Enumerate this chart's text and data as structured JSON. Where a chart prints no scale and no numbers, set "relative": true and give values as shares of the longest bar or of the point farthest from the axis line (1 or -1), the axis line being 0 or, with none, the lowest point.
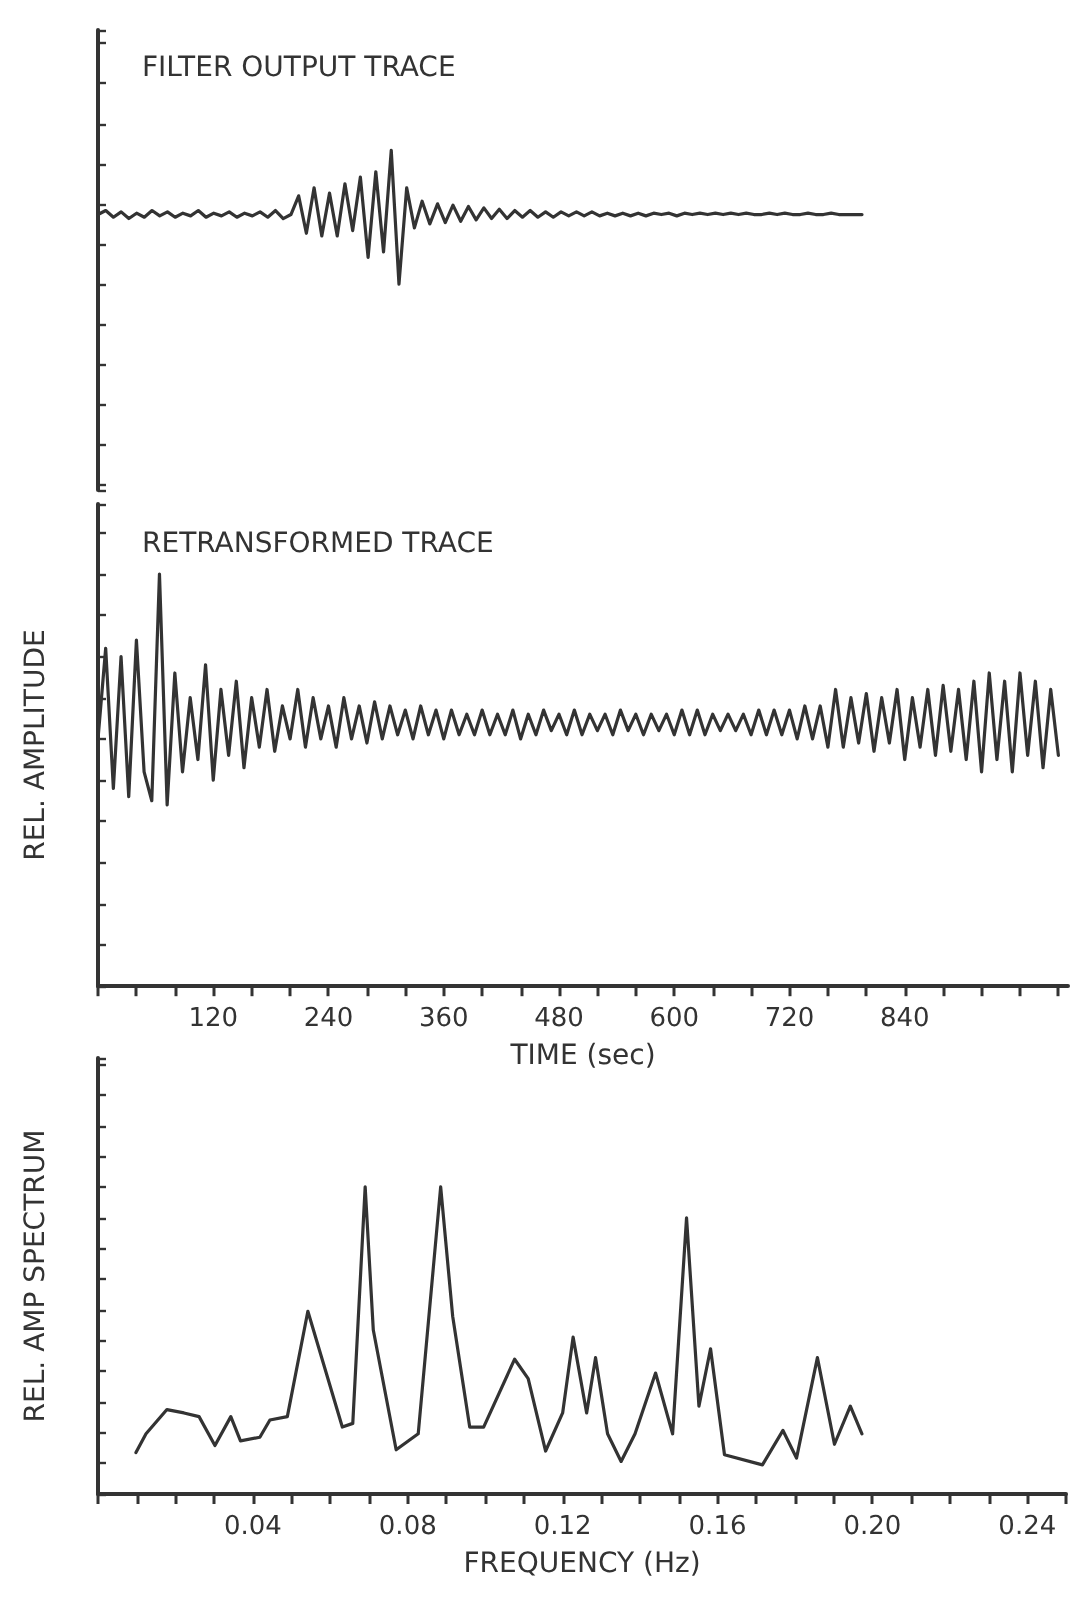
{
  "chart_data": [
    {
      "type": "line",
      "title": "FILTER OUTPUT TRACE",
      "relative": true,
      "color": "#333333",
      "marker": "none",
      "tick_labels": false,
      "categories": [
        null,
        null,
        null,
        null,
        null,
        null,
        null,
        null,
        null,
        null,
        null,
        null,
        null,
        null,
        null,
        null,
        null,
        null,
        null,
        null,
        null,
        null,
        null,
        null,
        null,
        null,
        null,
        null,
        null,
        null,
        null,
        null,
        null,
        null,
        null,
        null,
        null,
        null,
        null,
        null,
        null,
        null,
        null,
        null,
        null,
        null,
        null,
        null,
        null,
        null,
        null,
        null,
        null,
        null,
        null,
        null,
        null,
        null,
        null,
        null,
        null,
        null,
        null,
        null,
        null,
        null,
        null,
        null,
        null,
        null,
        null,
        null,
        null,
        null,
        null,
        null,
        null,
        null,
        null,
        null,
        null,
        null,
        null,
        null,
        null,
        null,
        null,
        null,
        null,
        null,
        null,
        null,
        null,
        null,
        null,
        null,
        null,
        null,
        null,
        null
      ],
      "values": [
        0.52,
        0.55,
        0.5,
        0.54,
        0.49,
        0.53,
        0.5,
        0.55,
        0.51,
        0.54,
        0.5,
        0.53,
        0.51,
        0.55,
        0.5,
        0.53,
        0.51,
        0.54,
        0.5,
        0.53,
        0.51,
        0.54,
        0.5,
        0.55,
        0.49,
        0.52,
        0.66,
        0.38,
        0.72,
        0.36,
        0.68,
        0.36,
        0.75,
        0.4,
        0.8,
        0.2,
        0.84,
        0.24,
        1.0,
        0.0,
        0.72,
        0.42,
        0.62,
        0.45,
        0.6,
        0.46,
        0.59,
        0.47,
        0.58,
        0.48,
        0.57,
        0.49,
        0.56,
        0.49,
        0.55,
        0.5,
        0.55,
        0.5,
        0.54,
        0.5,
        0.54,
        0.51,
        0.54,
        0.51,
        0.54,
        0.51,
        0.53,
        0.51,
        0.53,
        0.51,
        0.53,
        0.51,
        0.53,
        0.52,
        0.53,
        0.51,
        0.53,
        0.52,
        0.53,
        0.52,
        0.53,
        0.52,
        0.53,
        0.52,
        0.53,
        0.52,
        0.52,
        0.53,
        0.52,
        0.53,
        0.52,
        0.52,
        0.53,
        0.52,
        0.52,
        0.53,
        0.52,
        0.52,
        0.52,
        0.52
      ]
    },
    {
      "type": "line",
      "title": "RETRANSFORMED TRACE",
      "ylabel": "REL. AMPLITUDE",
      "xlabel": "TIME (sec)",
      "relative": true,
      "color": "#333333",
      "marker": "none",
      "tick_labels": "x",
      "xlim": [
        0,
        1010
      ],
      "xticks": [
        {
          "value": 0,
          "label": null
        },
        {
          "value": 40,
          "label": null
        },
        {
          "value": 80,
          "label": null
        },
        120,
        {
          "value": 160,
          "label": null
        },
        {
          "value": 200,
          "label": null
        },
        240,
        {
          "value": 280,
          "label": null
        },
        {
          "value": 320,
          "label": null
        },
        360,
        {
          "value": 400,
          "label": null
        },
        {
          "value": 440,
          "label": null
        },
        480,
        {
          "value": 520,
          "label": null
        },
        {
          "value": 560,
          "label": null
        },
        600,
        {
          "value": 640,
          "label": null
        },
        {
          "value": 680,
          "label": null
        },
        720,
        {
          "value": 760,
          "label": null
        },
        {
          "value": 800,
          "label": null
        },
        840,
        {
          "value": 880,
          "label": null
        },
        {
          "value": 920,
          "label": null
        },
        {
          "value": 960,
          "label": null
        },
        {
          "value": 1000,
          "label": null
        }
      ],
      "x": [
        0,
        8,
        16,
        24,
        32,
        40,
        48,
        56,
        64,
        72,
        80,
        88,
        96,
        104,
        112,
        120,
        128,
        136,
        144,
        152,
        160,
        168,
        176,
        184,
        192,
        200,
        208,
        216,
        224,
        232,
        240,
        248,
        256,
        264,
        272,
        280,
        288,
        296,
        304,
        312,
        320,
        328,
        336,
        344,
        352,
        360,
        368,
        376,
        384,
        392,
        400,
        408,
        416,
        424,
        432,
        440,
        448,
        456,
        464,
        472,
        480,
        488,
        496,
        504,
        512,
        520,
        528,
        536,
        544,
        552,
        560,
        568,
        576,
        584,
        592,
        600,
        608,
        616,
        624,
        632,
        640,
        648,
        656,
        664,
        672,
        680,
        688,
        696,
        704,
        712,
        720,
        728,
        736,
        744,
        752,
        760,
        768,
        776,
        784,
        792,
        800,
        808,
        816,
        824,
        832,
        840,
        848,
        856,
        864,
        872,
        880,
        888,
        896,
        904,
        912,
        920,
        928,
        936,
        944,
        952,
        960,
        968,
        976,
        984,
        992,
        1000
      ],
      "values": [
        0.6,
        0.82,
        0.48,
        0.8,
        0.46,
        0.84,
        0.52,
        0.45,
        1.0,
        0.44,
        0.76,
        0.52,
        0.7,
        0.55,
        0.78,
        0.5,
        0.72,
        0.56,
        0.74,
        0.53,
        0.7,
        0.58,
        0.72,
        0.57,
        0.68,
        0.6,
        0.72,
        0.58,
        0.7,
        0.6,
        0.68,
        0.58,
        0.7,
        0.6,
        0.68,
        0.59,
        0.69,
        0.6,
        0.68,
        0.61,
        0.67,
        0.6,
        0.68,
        0.61,
        0.67,
        0.6,
        0.67,
        0.61,
        0.66,
        0.61,
        0.67,
        0.61,
        0.66,
        0.61,
        0.67,
        0.6,
        0.66,
        0.61,
        0.67,
        0.62,
        0.66,
        0.61,
        0.67,
        0.61,
        0.66,
        0.62,
        0.66,
        0.61,
        0.67,
        0.62,
        0.66,
        0.61,
        0.66,
        0.62,
        0.66,
        0.61,
        0.67,
        0.61,
        0.67,
        0.61,
        0.66,
        0.62,
        0.66,
        0.62,
        0.66,
        0.61,
        0.67,
        0.61,
        0.67,
        0.61,
        0.67,
        0.6,
        0.68,
        0.6,
        0.68,
        0.58,
        0.72,
        0.58,
        0.7,
        0.59,
        0.71,
        0.57,
        0.7,
        0.59,
        0.72,
        0.55,
        0.7,
        0.58,
        0.72,
        0.56,
        0.73,
        0.57,
        0.72,
        0.55,
        0.74,
        0.52,
        0.76,
        0.55,
        0.74,
        0.52,
        0.76,
        0.56,
        0.74,
        0.53,
        0.72,
        0.56
      ]
    },
    {
      "type": "line",
      "xlabel": "FREQUENCY (Hz)",
      "ylabel": "REL. AMP SPECTRUM",
      "relative": true,
      "color": "#333333",
      "marker": "none",
      "tick_labels": "x",
      "xlim": [
        0,
        0.25
      ],
      "xticks": [
        {
          "value": 0,
          "label": null
        },
        {
          "value": 0.01,
          "label": null
        },
        {
          "value": 0.02,
          "label": null
        },
        {
          "value": 0.03,
          "label": null
        },
        {
          "value": 0.04,
          "label": "0.04"
        },
        {
          "value": 0.05,
          "label": null
        },
        {
          "value": 0.06,
          "label": null
        },
        {
          "value": 0.07,
          "label": null
        },
        {
          "value": 0.08,
          "label": "0.08"
        },
        {
          "value": 0.09,
          "label": null
        },
        {
          "value": 0.1,
          "label": null
        },
        {
          "value": 0.11,
          "label": null
        },
        {
          "value": 0.12,
          "label": "0.12"
        },
        {
          "value": 0.13,
          "label": null
        },
        {
          "value": 0.14,
          "label": null
        },
        {
          "value": 0.15,
          "label": null
        },
        {
          "value": 0.16,
          "label": "0.16"
        },
        {
          "value": 0.17,
          "label": null
        },
        {
          "value": 0.18,
          "label": null
        },
        {
          "value": 0.19,
          "label": null
        },
        {
          "value": 0.2,
          "label": "0.20"
        },
        {
          "value": 0.21,
          "label": null
        },
        {
          "value": 0.22,
          "label": null
        },
        {
          "value": 0.23,
          "label": null
        },
        {
          "value": 0.24,
          "label": "0.24"
        },
        {
          "value": 0.25,
          "label": null
        }
      ],
      "x": [
        0.0098,
        0.0124,
        0.0178,
        0.0222,
        0.0261,
        0.0302,
        0.0343,
        0.0368,
        0.0418,
        0.0444,
        0.0489,
        0.0542,
        0.0631,
        0.0658,
        0.069,
        0.0711,
        0.077,
        0.0827,
        0.0885,
        0.0916,
        0.096,
        0.0996,
        0.1076,
        0.1111,
        0.1156,
        0.12,
        0.1227,
        0.1262,
        0.1285,
        0.1316,
        0.1351,
        0.1387,
        0.144,
        0.1484,
        0.152,
        0.1552,
        0.1582,
        0.1618,
        0.1716,
        0.1769,
        0.1804,
        0.1858,
        0.1902,
        0.1943,
        0.1973
      ],
      "values": [
        0.135,
        0.196,
        0.275,
        0.264,
        0.252,
        0.158,
        0.252,
        0.173,
        0.185,
        0.241,
        0.252,
        0.595,
        0.218,
        0.23,
        1.0,
        0.534,
        0.144,
        0.196,
        1.0,
        0.579,
        0.218,
        0.218,
        0.439,
        0.376,
        0.14,
        0.264,
        0.511,
        0.264,
        0.444,
        0.196,
        0.106,
        0.196,
        0.394,
        0.196,
        0.899,
        0.286,
        0.473,
        0.128,
        0.095,
        0.207,
        0.117,
        0.444,
        0.162,
        0.286,
        0.196
      ]
    }
  ]
}
